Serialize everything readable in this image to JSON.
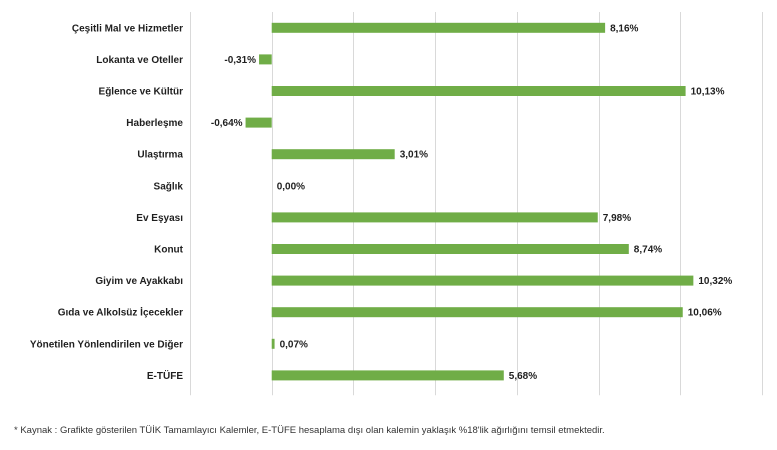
{
  "chart_data": {
    "type": "bar",
    "orientation": "horizontal",
    "categories": [
      "Çeşitli Mal ve Hizmetler",
      "Lokanta ve Oteller",
      "Eğlence ve Kültür",
      "Haberleşme",
      "Ulaştırma",
      "Sağlık",
      "Ev Eşyası",
      "Konut",
      "Giyim ve Ayakkabı",
      "Gıda ve Alkolsüz İçecekler",
      "Yönetilen Yönlendirilen ve Diğer",
      "E-TÜFE"
    ],
    "values": [
      8.16,
      -0.31,
      10.13,
      -0.64,
      3.01,
      0.0,
      7.98,
      8.74,
      10.32,
      10.06,
      0.07,
      5.68
    ],
    "value_labels": [
      "8,16%",
      "-0,31%",
      "10,13%",
      "-0,64%",
      "3,01%",
      "0,00%",
      "7,98%",
      "8,74%",
      "10,32%",
      "10,06%",
      "0,07%",
      "5,68%"
    ],
    "xlim": [
      -2,
      12
    ],
    "grid": "vertical",
    "bar_color": "#70ad47",
    "grid_color": "#d9d9d9"
  },
  "footnote": "* Kaynak : Grafikte gösterilen TÜİK Tamamlayıcı Kalemler, E-TÜFE hesaplama dışı olan kalemin yaklaşık %18'lik ağırlığını temsil etmektedir."
}
